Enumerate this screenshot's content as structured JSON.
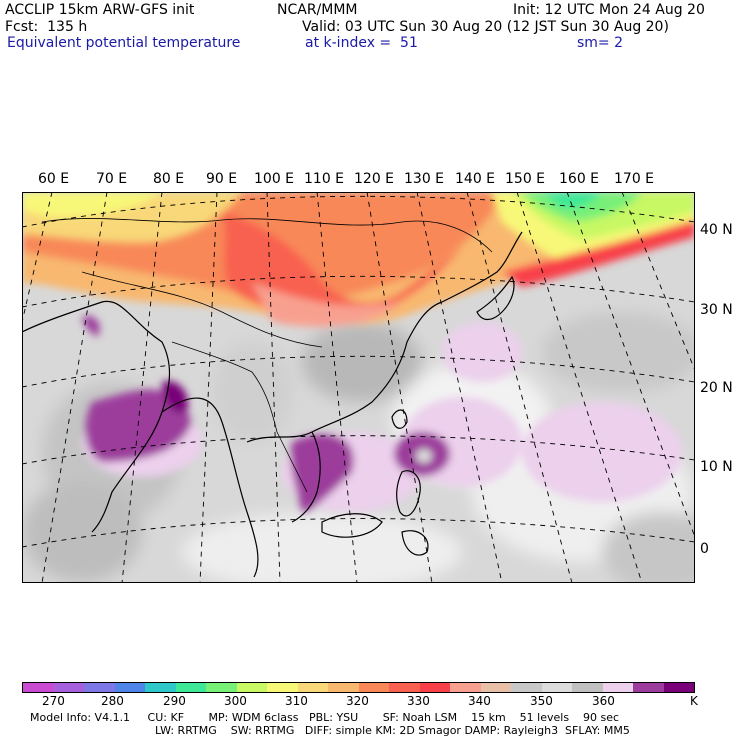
{
  "header": {
    "model": "ACCLIP 15km ARW-GFS init",
    "center": "NCAR/MMM",
    "init": "Init: 12 UTC Mon 24 Aug 20",
    "fcst": "Fcst:  135 h",
    "valid": "Valid: 03 UTC Sun 30 Aug 20 (12 JST Sun 30 Aug 20)",
    "field": "Equivalent potential temperature",
    "level": "at k-index =  51",
    "smooth": "sm= 2"
  },
  "lon_labels": [
    "60 E",
    "70 E",
    "80 E",
    "90 E",
    "100 E",
    "110 E",
    "120 E",
    "130 E",
    "140 E",
    "150 E",
    "160 E",
    "170 E"
  ],
  "lat_labels": [
    "40 N",
    "30 N",
    "20 N",
    "10 N",
    "0"
  ],
  "colorbar": {
    "colors": [
      "#c84bd2",
      "#a660dc",
      "#7e78e6",
      "#4f84e8",
      "#2ec8c8",
      "#3ee896",
      "#78f078",
      "#c8f864",
      "#f8f878",
      "#f8d878",
      "#f8b870",
      "#f88858",
      "#f86050",
      "#f84048",
      "#f8a090",
      "#e8c0a8",
      "#c8c8c8",
      "#dcdcdc",
      "#c0c0c0",
      "#ecd0ec",
      "#9c3c9c",
      "#780078"
    ],
    "ticks": [
      "270",
      "280",
      "290",
      "300",
      "310",
      "320",
      "330",
      "340",
      "350",
      "360",
      "K"
    ]
  },
  "footer": {
    "line1": "Model Info: V4.1.1     CU: KF       MP: WDM 6class   PBL: YSU       SF: Noah LSM    15 km    51 levels    90 sec",
    "line2": "LW: RRTMG    SW: RRTMG   DIFF: simple KM: 2D Smagor DAMP: Rayleigh3  SFLAY: MM5"
  },
  "map": {
    "region": "Asia-Pacific",
    "features": [
      "typhoon-eye",
      "coastlines",
      "country-borders",
      "lat-lon-grid"
    ]
  }
}
